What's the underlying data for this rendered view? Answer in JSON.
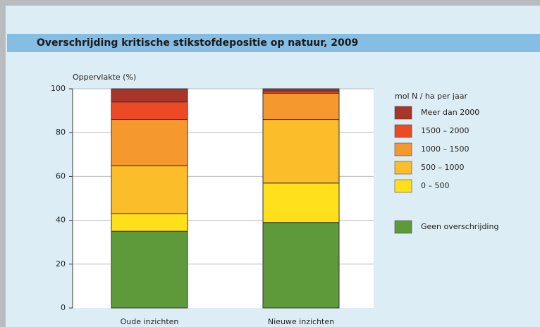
{
  "chart_data": {
    "type": "stacked_bar",
    "title": "Overschrijding kritische stikstofdepositie op natuur, 2009",
    "y_label": "Oppervlakte (%)",
    "legend_title": "mol N / ha per jaar",
    "categories": [
      "Oude inzichten",
      "Nieuwe inzichten"
    ],
    "series": [
      {
        "name": "Geen overschrijding",
        "color": "#5f9a3a",
        "values": [
          35,
          39
        ]
      },
      {
        "name": "0 – 500",
        "color": "#ffe01a",
        "values": [
          8,
          18
        ]
      },
      {
        "name": "500 – 1000",
        "color": "#fbbd2a",
        "values": [
          22,
          29
        ]
      },
      {
        "name": "1000 – 1500",
        "color": "#f5992e",
        "values": [
          21,
          12
        ]
      },
      {
        "name": "1500 – 2000",
        "color": "#ec4a24",
        "values": [
          8,
          1
        ]
      },
      {
        "name": "Meer dan 2000",
        "color": "#a8352a",
        "values": [
          6,
          1
        ]
      }
    ],
    "ylim": [
      0,
      100
    ],
    "yticks": [
      0,
      20,
      40,
      60,
      80,
      100
    ],
    "grid": true
  }
}
